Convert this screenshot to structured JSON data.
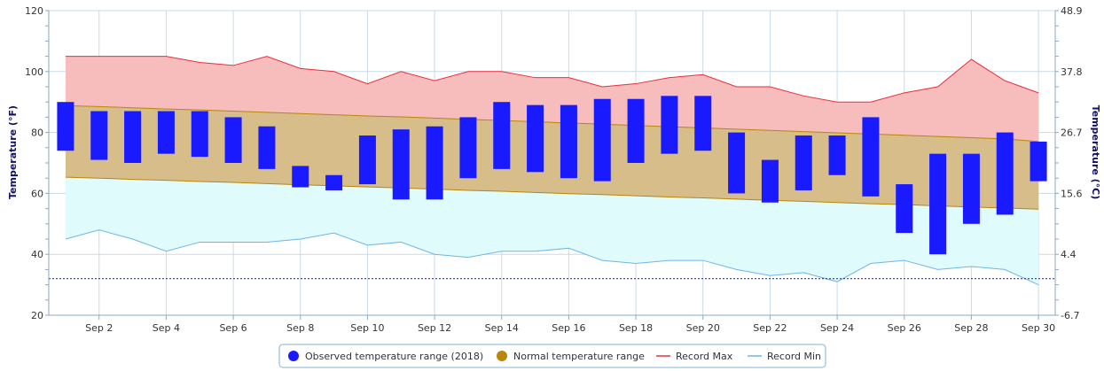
{
  "chart_data": {
    "type": "bar",
    "y_left_label": "Temperature (°F)",
    "y_right_label": "Temperature (°C)",
    "y_left_ticks": [
      "20",
      "40",
      "60",
      "80",
      "100",
      "120"
    ],
    "y_right_ticks": [
      "-6.7",
      "4.4",
      "15.6",
      "26.7",
      "37.8",
      "48.9"
    ],
    "ylim": [
      20,
      120
    ],
    "x_tick_labels": [
      "Sep 2",
      "Sep 4",
      "Sep 6",
      "Sep 8",
      "Sep 10",
      "Sep 12",
      "Sep 14",
      "Sep 16",
      "Sep 18",
      "Sep 20",
      "Sep 22",
      "Sep 24",
      "Sep 26",
      "Sep 28",
      "Sep 30"
    ],
    "x_tick_days": [
      2,
      4,
      6,
      8,
      10,
      12,
      14,
      16,
      18,
      20,
      22,
      24,
      26,
      28,
      30
    ],
    "days": [
      1,
      2,
      3,
      4,
      5,
      6,
      7,
      8,
      9,
      10,
      11,
      12,
      13,
      14,
      15,
      16,
      17,
      18,
      19,
      20,
      21,
      22,
      23,
      24,
      25,
      26,
      27,
      28,
      29,
      30
    ],
    "observed_low": [
      74,
      71,
      70,
      73,
      72,
      70,
      68,
      62,
      61,
      63,
      58,
      58,
      65,
      68,
      67,
      65,
      64,
      70,
      73,
      74,
      60,
      57,
      61,
      66,
      59,
      47,
      40,
      50,
      53,
      64
    ],
    "observed_high": [
      90,
      87,
      87,
      87,
      87,
      85,
      82,
      69,
      66,
      79,
      81,
      82,
      85,
      90,
      89,
      89,
      91,
      91,
      92,
      92,
      80,
      71,
      79,
      79,
      85,
      63,
      73,
      73,
      80,
      77
    ],
    "normal_low": [
      65.3,
      65.0,
      64.6,
      64.3,
      63.9,
      63.6,
      63.2,
      62.8,
      62.5,
      62.1,
      61.8,
      61.4,
      61.0,
      60.7,
      60.3,
      59.9,
      59.6,
      59.2,
      58.8,
      58.5,
      58.1,
      57.7,
      57.4,
      57.0,
      56.6,
      56.3,
      55.9,
      55.5,
      55.2,
      54.8
    ],
    "normal_high": [
      88.8,
      88.5,
      88.1,
      87.7,
      87.4,
      87.0,
      86.6,
      86.2,
      85.8,
      85.4,
      85.1,
      84.7,
      84.3,
      83.9,
      83.5,
      83.1,
      82.7,
      82.3,
      81.9,
      81.5,
      81.1,
      80.7,
      80.3,
      79.9,
      79.5,
      79.1,
      78.7,
      78.3,
      77.9,
      77.0
    ],
    "record_max": [
      105,
      105,
      105,
      105,
      103,
      102,
      105,
      101,
      100,
      96,
      100,
      97,
      100,
      100,
      98,
      98,
      95,
      96,
      98,
      99,
      95,
      95,
      92,
      90,
      90,
      93,
      95,
      104,
      97,
      93
    ],
    "record_min": [
      45,
      48,
      45,
      41,
      44,
      44,
      44,
      45,
      47,
      43,
      44,
      40,
      39,
      41,
      41,
      42,
      38,
      37,
      38,
      38,
      35,
      33,
      34,
      31,
      37,
      38,
      35,
      36,
      35,
      30
    ],
    "reference_line": 32,
    "series": [
      {
        "name": "Observed temperature range (2018)",
        "color": "#1a1aff"
      },
      {
        "name": "Normal temperature range",
        "color": "#b8860b"
      },
      {
        "name": "Record Max",
        "color": "#e8303a"
      },
      {
        "name": "Record Min",
        "color": "#6fb4e8"
      }
    ],
    "colors": {
      "observed": "#1a1aff",
      "normal_fill": "#d7bd8a",
      "normal_stroke": "#b8860b",
      "record_max_fill": "#f7bcbc",
      "record_max_line": "#e8303a",
      "record_min_fill": "#e0fbfb",
      "record_min_line": "#6fb4e8",
      "grid": "#c9dbe8",
      "reference": "#1a237e"
    }
  },
  "legend": {
    "observed_label": "Observed temperature range (2018)",
    "normal_label": "Normal temperature range",
    "record_max_label": "Record Max",
    "record_min_label": "Record Min"
  }
}
